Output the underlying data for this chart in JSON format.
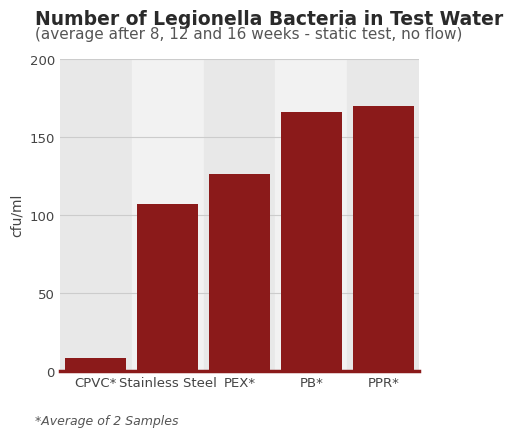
{
  "title": "Number of Legionella Bacteria in Test Water",
  "subtitle": "(average after 8, 12 and 16 weeks - static test, no flow)",
  "footnote": "*Average of 2 Samples",
  "ylabel": "cfu/ml",
  "categories": [
    "CPVC*",
    "Stainless Steel",
    "PEX*",
    "PB*",
    "PPR*"
  ],
  "values": [
    8,
    107,
    126,
    166,
    170
  ],
  "bar_color": "#8B1A1A",
  "ylim": [
    0,
    200
  ],
  "yticks": [
    0,
    50,
    100,
    150,
    200
  ],
  "band_color_odd": "#E8E8E8",
  "band_color_even": "#F2F2F2",
  "background_color": "#FFFFFF",
  "title_fontsize": 13.5,
  "subtitle_fontsize": 11,
  "ylabel_fontsize": 10,
  "tick_fontsize": 9.5,
  "footnote_fontsize": 9,
  "grid_color": "#CCCCCC",
  "axis_line_color": "#8B1A1A",
  "text_color": "#444444"
}
